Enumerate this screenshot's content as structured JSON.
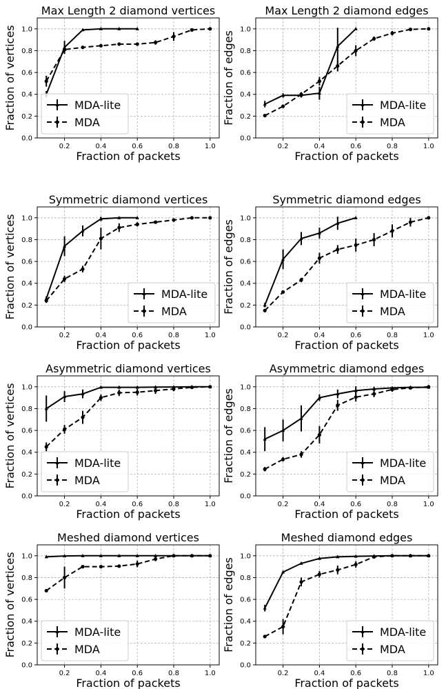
{
  "chart_data": [
    {
      "type": "line",
      "title": "Max Length 2 diamond vertices",
      "xlabel": "Fraction of packets",
      "ylabel": "Fraction of vertices",
      "xlim": [
        0.05,
        1.05
      ],
      "ylim": [
        0.0,
        1.1
      ],
      "xticks": [
        "0.2",
        "0.4",
        "0.6",
        "0.8",
        "1.0"
      ],
      "yticks": [
        "0.0",
        "0.2",
        "0.4",
        "0.6",
        "0.8",
        "1.0"
      ],
      "grid": true,
      "legend_position": "lower-left",
      "series": [
        {
          "name": "MDA-lite",
          "style": "solid",
          "marker": "triangle",
          "x": [
            0.1,
            0.2,
            0.3,
            0.4,
            0.5,
            0.6
          ],
          "y": [
            0.4,
            0.83,
            0.99,
            1.0,
            1.0,
            1.0
          ],
          "err": [
            0.03,
            0.06,
            0.01,
            0.005,
            0.003,
            0.002
          ]
        },
        {
          "name": "MDA",
          "style": "dashed",
          "marker": "circle",
          "x": [
            0.1,
            0.2,
            0.3,
            0.4,
            0.5,
            0.6,
            0.7,
            0.8,
            0.9,
            1.0
          ],
          "y": [
            0.52,
            0.81,
            0.83,
            0.845,
            0.86,
            0.86,
            0.875,
            0.93,
            0.99,
            1.0
          ],
          "err": [
            0.05,
            0.02,
            0.01,
            0.01,
            0.01,
            0.01,
            0.02,
            0.04,
            0.01,
            0.005
          ]
        }
      ]
    },
    {
      "type": "line",
      "title": "Max Length 2 diamond edges",
      "xlabel": "Fraction of packets",
      "ylabel": "Fraction of edges",
      "xlim": [
        0.05,
        1.05
      ],
      "ylim": [
        0.0,
        1.1
      ],
      "xticks": [
        "0.2",
        "0.4",
        "0.6",
        "0.8",
        "1.0"
      ],
      "yticks": [
        "0.0",
        "0.2",
        "0.4",
        "0.6",
        "0.8",
        "1.0"
      ],
      "grid": true,
      "legend_position": "lower-right",
      "series": [
        {
          "name": "MDA-lite",
          "style": "solid",
          "marker": "triangle",
          "x": [
            0.1,
            0.2,
            0.3,
            0.4,
            0.5,
            0.6
          ],
          "y": [
            0.31,
            0.39,
            0.39,
            0.41,
            0.84,
            1.0
          ],
          "err": [
            0.03,
            0.02,
            0.02,
            0.06,
            0.17,
            0.005
          ]
        },
        {
          "name": "MDA",
          "style": "dashed",
          "marker": "circle",
          "x": [
            0.1,
            0.2,
            0.3,
            0.4,
            0.5,
            0.6,
            0.7,
            0.8,
            0.9,
            1.0
          ],
          "y": [
            0.205,
            0.29,
            0.4,
            0.52,
            0.66,
            0.8,
            0.91,
            0.96,
            0.995,
            1.0
          ],
          "err": [
            0.01,
            0.015,
            0.02,
            0.04,
            0.05,
            0.05,
            0.02,
            0.02,
            0.005,
            0.003
          ]
        }
      ]
    },
    {
      "type": "line",
      "title": "Symmetric diamond vertices",
      "xlabel": "Fraction of packets",
      "ylabel": "Fraction of vertices",
      "xlim": [
        0.05,
        1.05
      ],
      "ylim": [
        0.0,
        1.1
      ],
      "xticks": [
        "0.2",
        "0.4",
        "0.6",
        "0.8",
        "1.0"
      ],
      "yticks": [
        "0.0",
        "0.2",
        "0.4",
        "0.6",
        "0.8",
        "1.0"
      ],
      "grid": true,
      "legend_position": "lower-right",
      "series": [
        {
          "name": "MDA-lite",
          "style": "solid",
          "marker": "triangle",
          "x": [
            0.1,
            0.2,
            0.3,
            0.4,
            0.5,
            0.6
          ],
          "y": [
            0.26,
            0.74,
            0.88,
            0.99,
            1.0,
            1.0
          ],
          "err": [
            0.02,
            0.09,
            0.05,
            0.02,
            0.005,
            0.002
          ]
        },
        {
          "name": "MDA",
          "style": "dashed",
          "marker": "circle",
          "x": [
            0.1,
            0.2,
            0.3,
            0.4,
            0.5,
            0.6,
            0.7,
            0.8,
            0.9,
            1.0
          ],
          "y": [
            0.24,
            0.44,
            0.53,
            0.81,
            0.91,
            0.94,
            0.96,
            0.98,
            1.0,
            1.0
          ],
          "err": [
            0.02,
            0.03,
            0.03,
            0.1,
            0.04,
            0.02,
            0.01,
            0.01,
            0.005,
            0.003
          ]
        }
      ]
    },
    {
      "type": "line",
      "title": "Symmetric diamond edges",
      "xlabel": "Fraction of packets",
      "ylabel": "Fraction of edges",
      "xlim": [
        0.05,
        1.05
      ],
      "ylim": [
        0.0,
        1.1
      ],
      "xticks": [
        "0.2",
        "0.4",
        "0.6",
        "0.8",
        "1.0"
      ],
      "yticks": [
        "0.0",
        "0.2",
        "0.4",
        "0.6",
        "0.8",
        "1.0"
      ],
      "grid": true,
      "legend_position": "lower-right",
      "series": [
        {
          "name": "MDA-lite",
          "style": "solid",
          "marker": "triangle",
          "x": [
            0.1,
            0.2,
            0.3,
            0.4,
            0.5,
            0.6
          ],
          "y": [
            0.2,
            0.62,
            0.81,
            0.86,
            0.95,
            1.0
          ],
          "err": [
            0.02,
            0.09,
            0.06,
            0.05,
            0.06,
            0.005
          ]
        },
        {
          "name": "MDA",
          "style": "dashed",
          "marker": "circle",
          "x": [
            0.1,
            0.2,
            0.3,
            0.4,
            0.5,
            0.6,
            0.7,
            0.8,
            0.9,
            1.0
          ],
          "y": [
            0.15,
            0.32,
            0.43,
            0.63,
            0.71,
            0.75,
            0.8,
            0.88,
            0.96,
            1.0
          ],
          "err": [
            0.01,
            0.015,
            0.02,
            0.05,
            0.04,
            0.06,
            0.06,
            0.06,
            0.04,
            0.005
          ]
        }
      ]
    },
    {
      "type": "line",
      "title": "Asymmetric diamond vertices",
      "xlabel": "Fraction of packets",
      "ylabel": "Fraction of vertices",
      "xlim": [
        0.05,
        1.05
      ],
      "ylim": [
        0.0,
        1.1
      ],
      "xticks": [
        "0.2",
        "0.4",
        "0.6",
        "0.8",
        "1.0"
      ],
      "yticks": [
        "0.0",
        "0.2",
        "0.4",
        "0.6",
        "0.8",
        "1.0"
      ],
      "grid": true,
      "legend_position": "lower-left",
      "series": [
        {
          "name": "MDA-lite",
          "style": "solid",
          "marker": "triangle",
          "x": [
            0.1,
            0.2,
            0.3,
            0.4,
            0.5,
            0.6,
            0.7,
            0.8,
            0.9,
            1.0
          ],
          "y": [
            0.8,
            0.91,
            0.935,
            0.995,
            0.995,
            0.995,
            0.997,
            0.998,
            1.0,
            1.0
          ],
          "err": [
            0.12,
            0.05,
            0.04,
            0.01,
            0.01,
            0.01,
            0.008,
            0.005,
            0.003,
            0.002
          ]
        },
        {
          "name": "MDA",
          "style": "dashed",
          "marker": "circle",
          "x": [
            0.1,
            0.2,
            0.3,
            0.4,
            0.5,
            0.6,
            0.7,
            0.8,
            0.9,
            1.0
          ],
          "y": [
            0.45,
            0.61,
            0.72,
            0.9,
            0.945,
            0.95,
            0.965,
            0.98,
            0.995,
            1.0
          ],
          "err": [
            0.04,
            0.04,
            0.06,
            0.03,
            0.03,
            0.03,
            0.03,
            0.02,
            0.005,
            0.003
          ]
        }
      ]
    },
    {
      "type": "line",
      "title": "Asymmetric diamond edges",
      "xlabel": "Fraction of packets",
      "ylabel": "Fraction of edges",
      "xlim": [
        0.05,
        1.05
      ],
      "ylim": [
        0.0,
        1.1
      ],
      "xticks": [
        "0.2",
        "0.4",
        "0.6",
        "0.8",
        "1.0"
      ],
      "yticks": [
        "0.0",
        "0.2",
        "0.4",
        "0.6",
        "0.8",
        "1.0"
      ],
      "grid": true,
      "legend_position": "lower-right",
      "series": [
        {
          "name": "MDA-lite",
          "style": "solid",
          "marker": "triangle",
          "x": [
            0.1,
            0.2,
            0.3,
            0.4,
            0.5,
            0.6,
            0.7,
            0.8,
            0.9,
            1.0
          ],
          "y": [
            0.52,
            0.6,
            0.71,
            0.9,
            0.935,
            0.965,
            0.98,
            0.99,
            0.995,
            0.995
          ],
          "err": [
            0.11,
            0.1,
            0.12,
            0.03,
            0.04,
            0.04,
            0.02,
            0.01,
            0.005,
            0.005
          ]
        },
        {
          "name": "MDA",
          "style": "dashed",
          "marker": "circle",
          "x": [
            0.1,
            0.2,
            0.3,
            0.4,
            0.5,
            0.6,
            0.7,
            0.8,
            0.9,
            1.0
          ],
          "y": [
            0.245,
            0.335,
            0.38,
            0.56,
            0.83,
            0.905,
            0.935,
            0.975,
            0.99,
            1.0
          ],
          "err": [
            0.02,
            0.02,
            0.03,
            0.08,
            0.05,
            0.04,
            0.03,
            0.02,
            0.01,
            0.005
          ]
        }
      ]
    },
    {
      "type": "line",
      "title": "Meshed diamond vertices",
      "xlabel": "Fraction of packets",
      "ylabel": "Fraction of vertices",
      "xlim": [
        0.05,
        1.05
      ],
      "ylim": [
        0.0,
        1.1
      ],
      "xticks": [
        "0.2",
        "0.4",
        "0.6",
        "0.8",
        "1.0"
      ],
      "yticks": [
        "0.0",
        "0.2",
        "0.4",
        "0.6",
        "0.8",
        "1.0"
      ],
      "grid": true,
      "legend_position": "lower-left",
      "series": [
        {
          "name": "MDA-lite",
          "style": "solid",
          "marker": "triangle",
          "x": [
            0.1,
            0.2,
            0.3,
            0.4,
            0.5,
            0.6,
            0.7,
            0.8,
            0.9,
            1.0
          ],
          "y": [
            0.99,
            0.998,
            1.0,
            1.0,
            1.0,
            1.0,
            1.0,
            1.0,
            1.0,
            1.0
          ],
          "err": [
            0.01,
            0.005,
            0.003,
            0.002,
            0.002,
            0.002,
            0.002,
            0.002,
            0.002,
            0.002
          ]
        },
        {
          "name": "MDA",
          "style": "dashed",
          "marker": "circle",
          "x": [
            0.1,
            0.2,
            0.3,
            0.4,
            0.5,
            0.6,
            0.7,
            0.8,
            0.9,
            1.0
          ],
          "y": [
            0.68,
            0.8,
            0.9,
            0.9,
            0.905,
            0.925,
            0.97,
            1.0,
            1.0,
            1.0
          ],
          "err": [
            0.01,
            0.1,
            0.01,
            0.01,
            0.01,
            0.03,
            0.02,
            0.01,
            0.005,
            0.003
          ]
        }
      ]
    },
    {
      "type": "line",
      "title": "Meshed diamond edges",
      "xlabel": "Fraction of packets",
      "ylabel": "Fraction of edges",
      "xlim": [
        0.05,
        1.05
      ],
      "ylim": [
        0.0,
        1.1
      ],
      "xticks": [
        "0.2",
        "0.4",
        "0.6",
        "0.8",
        "1.0"
      ],
      "yticks": [
        "0.0",
        "0.2",
        "0.4",
        "0.6",
        "0.8",
        "1.0"
      ],
      "grid": true,
      "legend_position": "lower-right",
      "series": [
        {
          "name": "MDA-lite",
          "style": "solid",
          "marker": "triangle",
          "x": [
            0.1,
            0.2,
            0.3,
            0.4,
            0.5,
            0.6,
            0.7,
            0.8,
            0.9,
            1.0
          ],
          "y": [
            0.52,
            0.85,
            0.93,
            0.975,
            0.99,
            0.995,
            0.998,
            1.0,
            1.0,
            1.0
          ],
          "err": [
            0.03,
            0.01,
            0.01,
            0.005,
            0.005,
            0.003,
            0.002,
            0.002,
            0.002,
            0.002
          ]
        },
        {
          "name": "MDA",
          "style": "dashed",
          "marker": "circle",
          "x": [
            0.1,
            0.2,
            0.3,
            0.4,
            0.5,
            0.6,
            0.7,
            0.8,
            0.9,
            1.0
          ],
          "y": [
            0.26,
            0.35,
            0.76,
            0.83,
            0.87,
            0.92,
            0.99,
            1.0,
            1.0,
            1.0
          ],
          "err": [
            0.01,
            0.07,
            0.04,
            0.03,
            0.04,
            0.03,
            0.01,
            0.005,
            0.003,
            0.002
          ]
        }
      ]
    }
  ]
}
